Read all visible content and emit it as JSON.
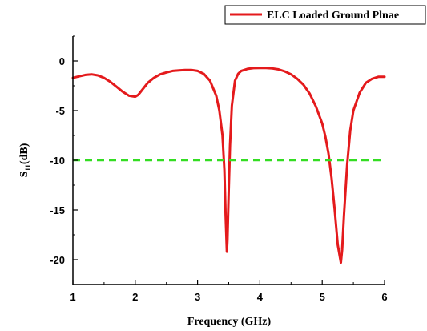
{
  "chart_data": {
    "type": "line",
    "xlabel": "Frequency (GHz)",
    "ylabel": {
      "main": "S",
      "sub": "11",
      "suffix": "(dB)"
    },
    "xlim": [
      1,
      6
    ],
    "ylim": [
      -22.5,
      2.5
    ],
    "xticks": [
      1,
      2,
      3,
      4,
      5,
      6
    ],
    "yticks": [
      0,
      -5,
      -10,
      -15,
      -20
    ],
    "grid": false,
    "legend_position": "top-right",
    "series": [
      {
        "name": "ELC Loaded Ground Plnae",
        "color": "#e41a1c",
        "style": "solid",
        "x": [
          1.0,
          1.1,
          1.2,
          1.3,
          1.4,
          1.5,
          1.6,
          1.7,
          1.8,
          1.9,
          2.0,
          2.05,
          2.1,
          2.2,
          2.3,
          2.4,
          2.5,
          2.6,
          2.7,
          2.8,
          2.9,
          3.0,
          3.1,
          3.2,
          3.3,
          3.35,
          3.4,
          3.43,
          3.45,
          3.47,
          3.48,
          3.5,
          3.52,
          3.55,
          3.6,
          3.65,
          3.7,
          3.8,
          3.9,
          4.0,
          4.1,
          4.2,
          4.3,
          4.4,
          4.5,
          4.6,
          4.7,
          4.8,
          4.9,
          5.0,
          5.05,
          5.1,
          5.15,
          5.2,
          5.25,
          5.3,
          5.32,
          5.35,
          5.4,
          5.45,
          5.5,
          5.6,
          5.7,
          5.8,
          5.9,
          6.0
        ],
        "y": [
          -1.7,
          -1.55,
          -1.4,
          -1.35,
          -1.45,
          -1.7,
          -2.1,
          -2.6,
          -3.1,
          -3.5,
          -3.6,
          -3.4,
          -3.0,
          -2.2,
          -1.7,
          -1.35,
          -1.15,
          -1.0,
          -0.95,
          -0.9,
          -0.9,
          -1.0,
          -1.3,
          -2.0,
          -3.5,
          -5.0,
          -7.5,
          -11.0,
          -15.5,
          -19.2,
          -18.0,
          -13.0,
          -8.5,
          -4.5,
          -2.0,
          -1.3,
          -1.0,
          -0.8,
          -0.72,
          -0.7,
          -0.7,
          -0.75,
          -0.85,
          -1.05,
          -1.35,
          -1.8,
          -2.4,
          -3.3,
          -4.6,
          -6.3,
          -7.6,
          -9.3,
          -11.8,
          -15.0,
          -18.5,
          -20.3,
          -19.0,
          -15.5,
          -10.5,
          -7.0,
          -5.0,
          -3.2,
          -2.2,
          -1.8,
          -1.6,
          -1.6
        ]
      },
      {
        "color": "#33dd22",
        "style": "dashed",
        "x": [
          1,
          6
        ],
        "y": [
          -10,
          -10
        ]
      }
    ]
  }
}
